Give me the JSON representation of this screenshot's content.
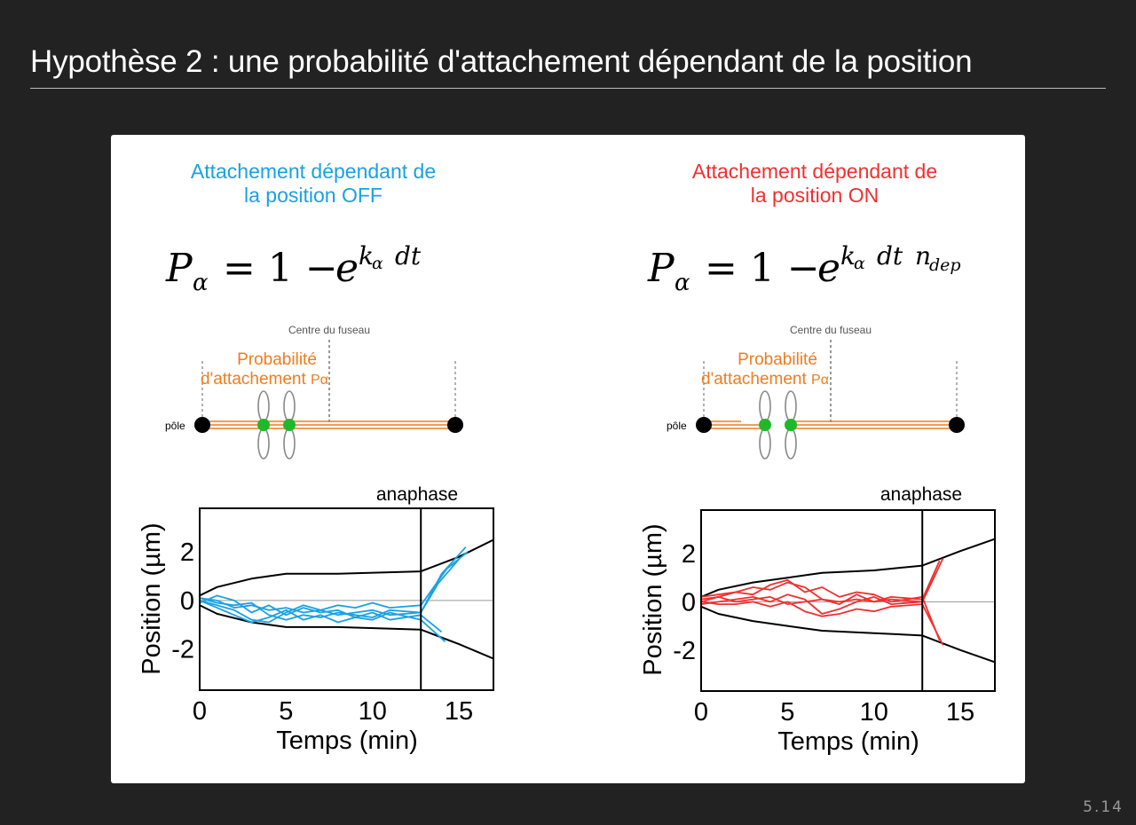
{
  "slide": {
    "title": "Hypothèse 2 : une probabilité d'attachement dépendant de la position",
    "number": "5.14"
  },
  "left": {
    "heading": [
      "Attachement dépendant de",
      "la position OFF"
    ],
    "heading_color": "#1ba1e2",
    "formula": "P_α = 1 − e^{k_α dt}",
    "schema": {
      "centre_label": "Centre du fuseau",
      "prob_label_1": "Probabilité",
      "prob_label_2": "d'attachement ",
      "prob_label_p": "Pα",
      "pole_label": "pôle"
    },
    "plot": {
      "anaphase_label": "anaphase",
      "xlabel": "Temps (min)",
      "ylabel": "Position (µm)"
    }
  },
  "right": {
    "heading": [
      "Attachement dépendant de",
      "la position ON"
    ],
    "heading_color": "#f03030",
    "formula": "P_α = 1 − e^{k_α dt n_dep}",
    "schema": {
      "centre_label": "Centre du fuseau",
      "prob_label_1": "Probabilité",
      "prob_label_2": "d'attachement ",
      "prob_label_p": "Pα",
      "pole_label": "pôle"
    },
    "plot": {
      "anaphase_label": "anaphase",
      "xlabel": "Temps (min)",
      "ylabel": "Position (µm)"
    }
  },
  "colors": {
    "off": "#1ba1e2",
    "on": "#f03030",
    "orange": "#f07c1e",
    "green": "#1fb82b"
  },
  "chart_data": [
    {
      "type": "line",
      "title": "",
      "xlabel": "Temps (min)",
      "ylabel": "Position (µm)",
      "xticks": [
        0,
        5,
        10,
        15
      ],
      "yticks": [
        2,
        0,
        -2
      ],
      "xlim": [
        0,
        17
      ],
      "ylim": [
        -3.7,
        3.8
      ],
      "anaphase_x": 12.8,
      "series": [
        {
          "role": "pole",
          "points": [
            [
              0,
              0.2
            ],
            [
              1,
              0.55
            ],
            [
              3,
              0.9
            ],
            [
              5,
              1.1
            ],
            [
              8,
              1.1
            ],
            [
              12.8,
              1.2
            ],
            [
              15,
              1.8
            ],
            [
              17,
              2.5
            ]
          ]
        },
        {
          "role": "pole",
          "points": [
            [
              0,
              -0.2
            ],
            [
              1,
              -0.55
            ],
            [
              3,
              -0.9
            ],
            [
              5,
              -1.1
            ],
            [
              8,
              -1.1
            ],
            [
              12.8,
              -1.2
            ],
            [
              15,
              -1.8
            ],
            [
              17,
              -2.4
            ]
          ]
        },
        {
          "role": "trajectory",
          "points": [
            [
              0,
              0.1
            ],
            [
              1,
              0.0
            ],
            [
              2,
              -0.3
            ],
            [
              3,
              -0.2
            ],
            [
              4,
              -0.4
            ],
            [
              5,
              -0.3
            ],
            [
              6,
              -0.5
            ],
            [
              7,
              -0.4
            ],
            [
              8,
              -0.6
            ],
            [
              9,
              -0.5
            ],
            [
              10,
              -0.4
            ],
            [
              11,
              -0.6
            ],
            [
              12.8,
              -0.5
            ],
            [
              14,
              1.1
            ],
            [
              15.4,
              2.2
            ]
          ]
        },
        {
          "role": "trajectory",
          "points": [
            [
              0,
              0.0
            ],
            [
              1,
              -0.3
            ],
            [
              2,
              -0.6
            ],
            [
              3,
              -0.9
            ],
            [
              4,
              -0.7
            ],
            [
              5,
              -0.4
            ],
            [
              6,
              -0.8
            ],
            [
              7,
              -0.6
            ],
            [
              8,
              -0.9
            ],
            [
              9,
              -0.7
            ],
            [
              10,
              -0.8
            ],
            [
              11,
              -0.5
            ],
            [
              12.8,
              -0.8
            ],
            [
              14.2,
              -1.7
            ]
          ]
        },
        {
          "role": "trajectory",
          "points": [
            [
              0,
              -0.1
            ],
            [
              1,
              0.2
            ],
            [
              2,
              0.0
            ],
            [
              3,
              -0.5
            ],
            [
              4,
              -0.2
            ],
            [
              5,
              -0.6
            ],
            [
              6,
              -0.3
            ],
            [
              7,
              -0.5
            ],
            [
              8,
              -0.4
            ],
            [
              9,
              -0.7
            ],
            [
              10,
              -0.5
            ],
            [
              11,
              -0.8
            ],
            [
              12.8,
              -0.6
            ],
            [
              14,
              -1.3
            ]
          ]
        },
        {
          "role": "trajectory",
          "points": [
            [
              0,
              0.0
            ],
            [
              1,
              -0.2
            ],
            [
              2,
              -0.4
            ],
            [
              3,
              -0.8
            ],
            [
              4,
              -0.9
            ],
            [
              5,
              -0.5
            ],
            [
              6,
              -0.2
            ],
            [
              7,
              -0.4
            ],
            [
              8,
              -0.2
            ],
            [
              9,
              -0.3
            ],
            [
              10,
              -0.1
            ],
            [
              11,
              -0.3
            ],
            [
              12.8,
              -0.2
            ],
            [
              14.3,
              1.3
            ],
            [
              15.5,
              2.0
            ]
          ]
        },
        {
          "role": "trajectory",
          "points": [
            [
              0,
              0.1
            ],
            [
              1,
              -0.1
            ],
            [
              2,
              -0.2
            ],
            [
              3,
              -0.1
            ],
            [
              4,
              -0.6
            ],
            [
              5,
              -0.8
            ],
            [
              6,
              -0.6
            ],
            [
              7,
              -0.7
            ],
            [
              8,
              -0.5
            ],
            [
              9,
              -0.6
            ],
            [
              10,
              -0.7
            ],
            [
              11,
              -0.4
            ],
            [
              12.8,
              -0.5
            ],
            [
              13.8,
              0.7
            ],
            [
              15,
              1.7
            ]
          ]
        }
      ]
    },
    {
      "type": "line",
      "title": "",
      "xlabel": "Temps (min)",
      "ylabel": "Position (µm)",
      "xticks": [
        0,
        5,
        10,
        15
      ],
      "yticks": [
        2,
        0,
        -2
      ],
      "xlim": [
        0,
        17
      ],
      "ylim": [
        -3.7,
        3.8
      ],
      "anaphase_x": 12.8,
      "series": [
        {
          "role": "pole",
          "points": [
            [
              0,
              0.2
            ],
            [
              1,
              0.5
            ],
            [
              3,
              0.8
            ],
            [
              5,
              1.0
            ],
            [
              7,
              1.2
            ],
            [
              10,
              1.3
            ],
            [
              12.8,
              1.5
            ],
            [
              15,
              2.1
            ],
            [
              17,
              2.6
            ]
          ]
        },
        {
          "role": "pole",
          "points": [
            [
              0,
              -0.2
            ],
            [
              1,
              -0.5
            ],
            [
              3,
              -0.8
            ],
            [
              5,
              -1.0
            ],
            [
              7,
              -1.2
            ],
            [
              10,
              -1.3
            ],
            [
              12.8,
              -1.4
            ],
            [
              15,
              -2.0
            ],
            [
              17,
              -2.5
            ]
          ]
        },
        {
          "role": "trajectory",
          "points": [
            [
              0,
              0.2
            ],
            [
              1,
              0.3
            ],
            [
              2,
              0.4
            ],
            [
              3,
              0.6
            ],
            [
              4,
              0.5
            ],
            [
              5,
              0.8
            ],
            [
              6,
              0.6
            ],
            [
              7,
              0.1
            ],
            [
              8,
              -0.1
            ],
            [
              9,
              0.3
            ],
            [
              10,
              0.0
            ],
            [
              11,
              0.2
            ],
            [
              12.8,
              0.1
            ],
            [
              13.8,
              1.7
            ]
          ]
        },
        {
          "role": "trajectory",
          "points": [
            [
              0,
              0.0
            ],
            [
              1,
              0.2
            ],
            [
              2,
              0.4
            ],
            [
              3,
              0.3
            ],
            [
              4,
              0.7
            ],
            [
              5,
              0.9
            ],
            [
              6,
              0.4
            ],
            [
              7,
              0.6
            ],
            [
              8,
              0.2
            ],
            [
              9,
              0.4
            ],
            [
              10,
              0.3
            ],
            [
              11,
              0.0
            ],
            [
              12.8,
              0.2
            ],
            [
              13.8,
              -1.6
            ]
          ]
        },
        {
          "role": "trajectory",
          "points": [
            [
              0,
              -0.1
            ],
            [
              1,
              0.0
            ],
            [
              2,
              0.1
            ],
            [
              3,
              0.2
            ],
            [
              4,
              0.0
            ],
            [
              5,
              0.3
            ],
            [
              6,
              0.1
            ],
            [
              7,
              -0.5
            ],
            [
              8,
              -0.3
            ],
            [
              9,
              0.0
            ],
            [
              10,
              0.2
            ],
            [
              11,
              -0.1
            ],
            [
              12.8,
              0.0
            ],
            [
              14,
              1.8
            ]
          ]
        },
        {
          "role": "trajectory",
          "points": [
            [
              0,
              0.0
            ],
            [
              1,
              -0.1
            ],
            [
              2,
              -0.1
            ],
            [
              3,
              0.0
            ],
            [
              4,
              -0.2
            ],
            [
              5,
              0.0
            ],
            [
              6,
              -0.4
            ],
            [
              7,
              -0.6
            ],
            [
              8,
              -0.5
            ],
            [
              9,
              -0.3
            ],
            [
              10,
              -0.4
            ],
            [
              11,
              -0.2
            ],
            [
              12.8,
              -0.1
            ],
            [
              14,
              -1.8
            ]
          ]
        },
        {
          "role": "trajectory",
          "points": [
            [
              0,
              0.1
            ],
            [
              1,
              0.2
            ],
            [
              2,
              0.0
            ],
            [
              3,
              0.1
            ],
            [
              4,
              0.2
            ],
            [
              5,
              -0.1
            ],
            [
              6,
              0.0
            ],
            [
              7,
              0.1
            ],
            [
              8,
              0.0
            ],
            [
              9,
              0.1
            ],
            [
              10,
              0.0
            ],
            [
              11,
              0.1
            ],
            [
              12.8,
              0.0
            ],
            [
              13.6,
              1.2
            ]
          ]
        }
      ]
    }
  ]
}
